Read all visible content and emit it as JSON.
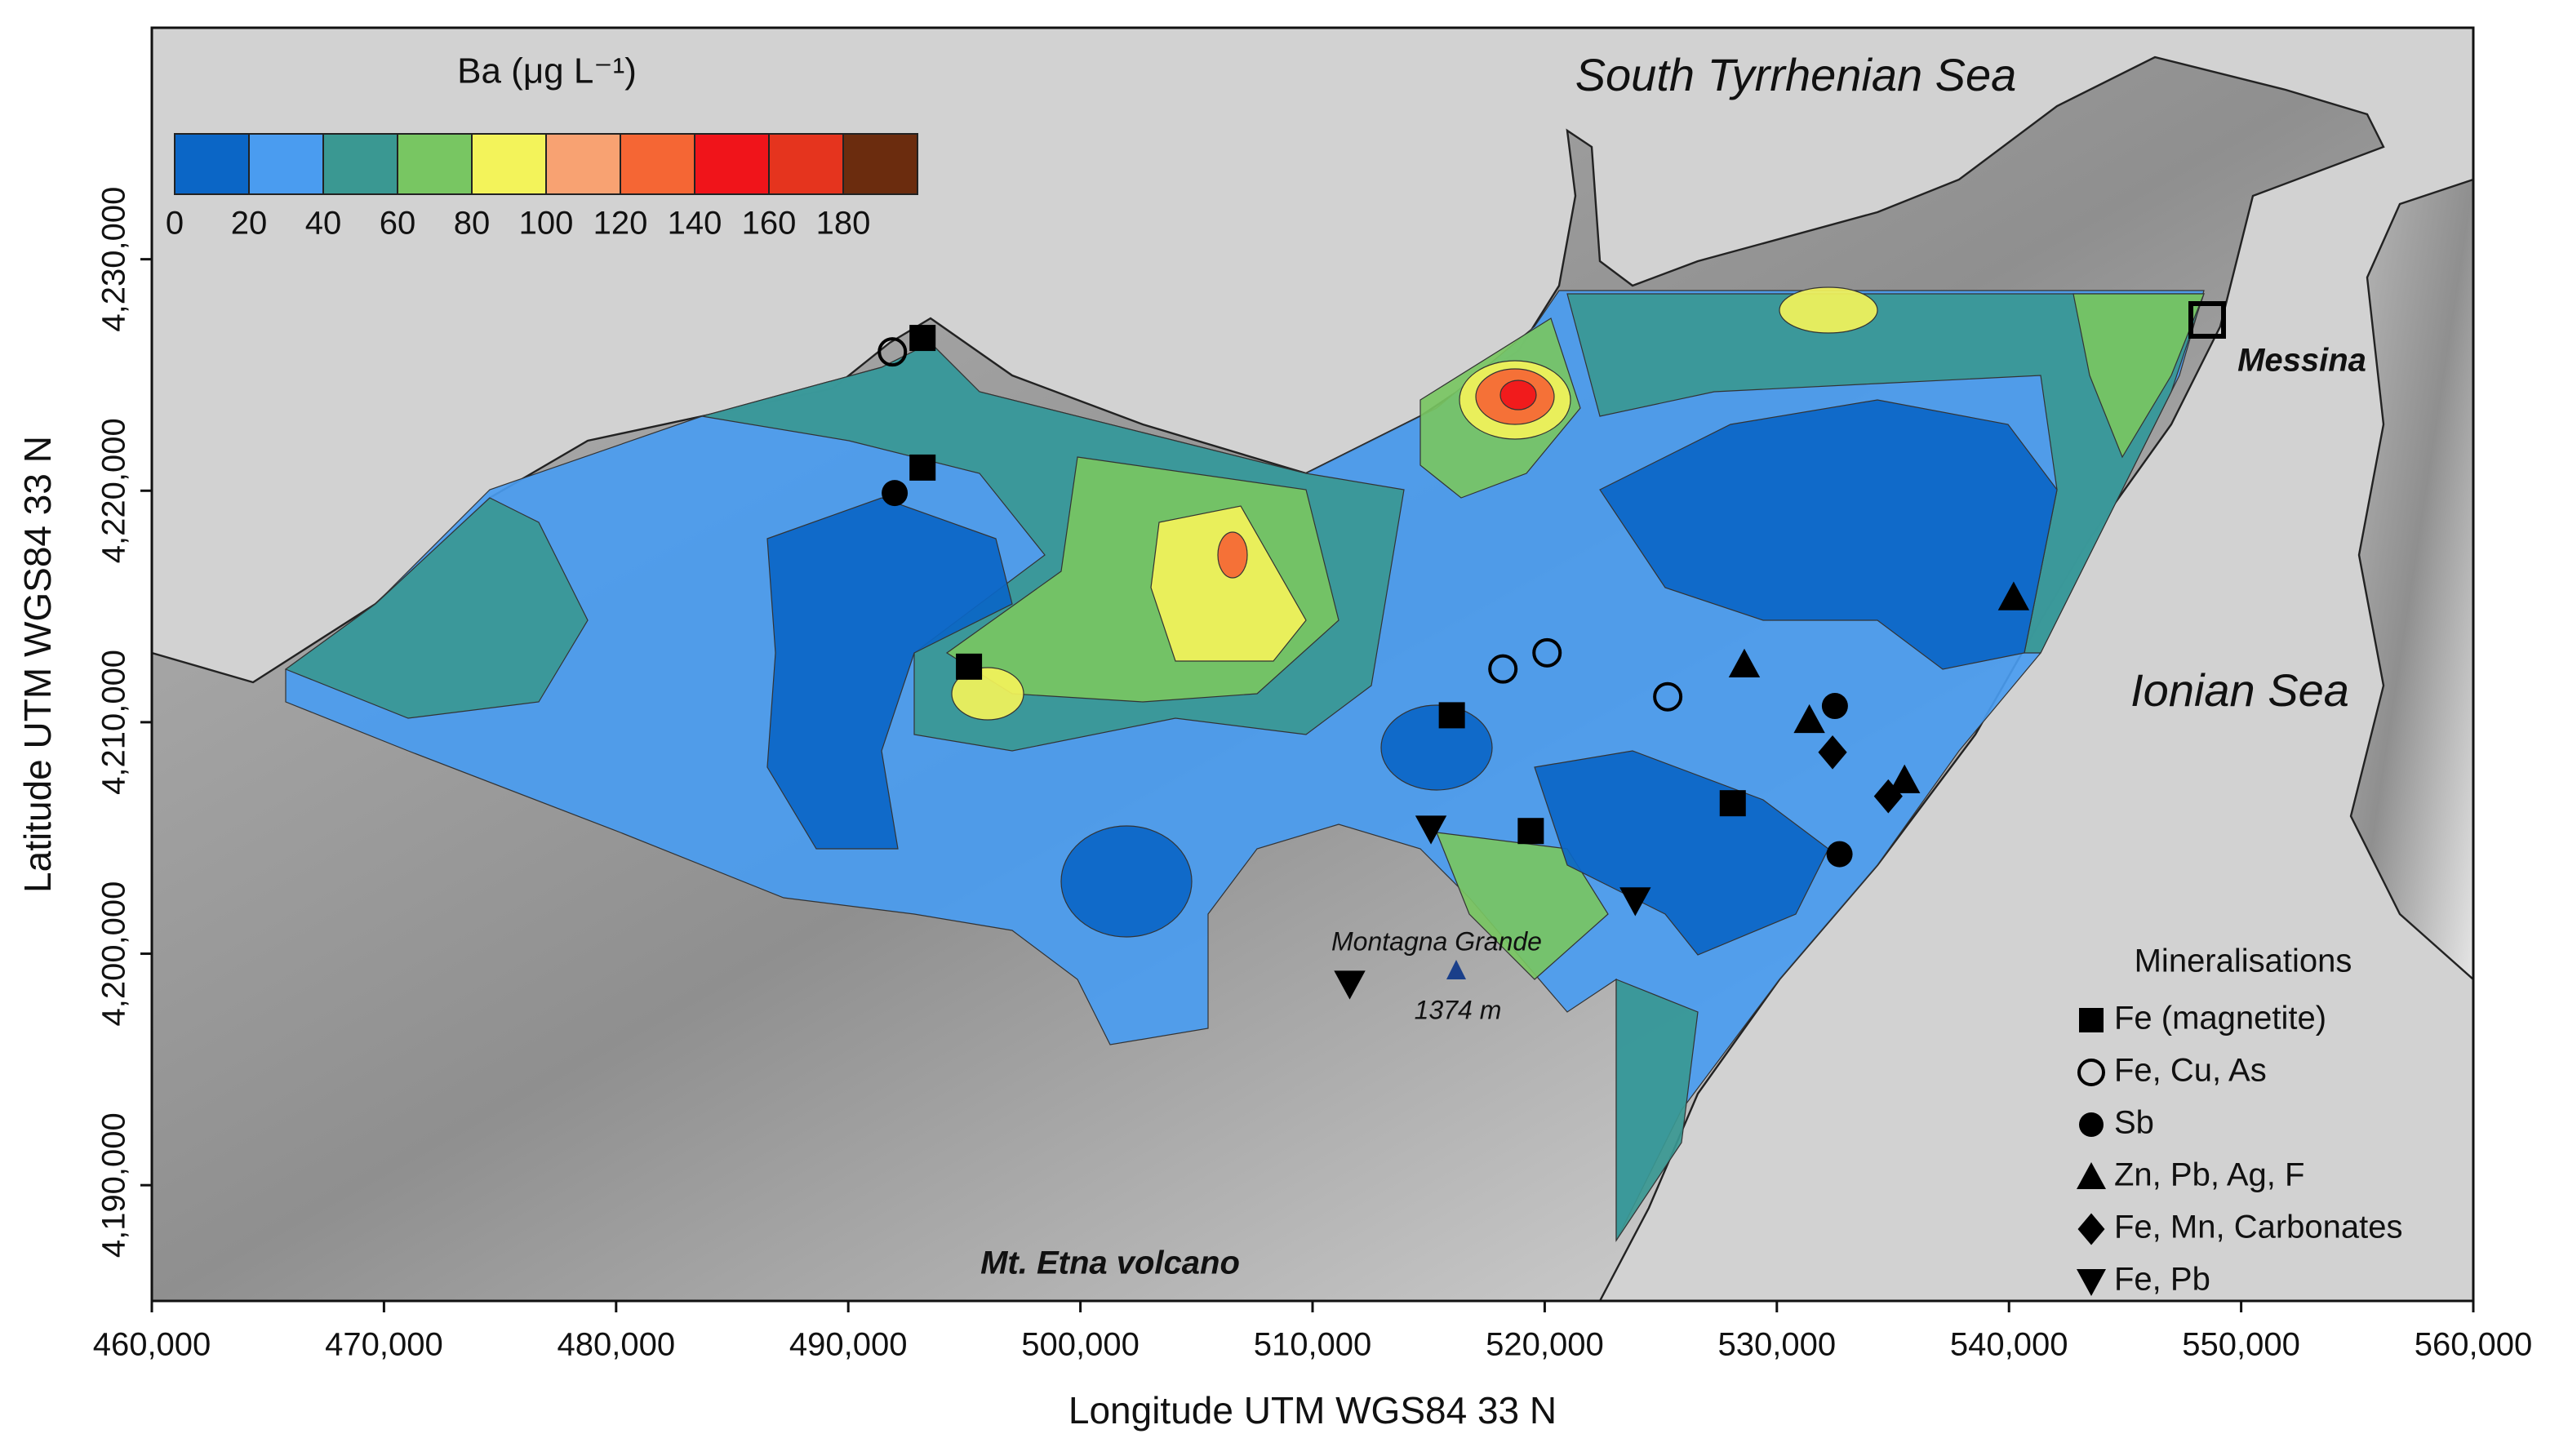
{
  "chart_data": {
    "type": "map",
    "x_label": "Longitude UTM WGS84 33 N",
    "y_label": "Latitude UTM WGS84 33 N",
    "xlim": [
      460000,
      560000
    ],
    "ylim": [
      4185000,
      4240000
    ],
    "xticks": [
      {
        "value": 460000,
        "label": "460,000"
      },
      {
        "value": 470000,
        "label": "470,000"
      },
      {
        "value": 480000,
        "label": "480,000"
      },
      {
        "value": 490000,
        "label": "490,000"
      },
      {
        "value": 500000,
        "label": "500,000"
      },
      {
        "value": 510000,
        "label": "510,000"
      },
      {
        "value": 520000,
        "label": "520,000"
      },
      {
        "value": 530000,
        "label": "530,000"
      },
      {
        "value": 540000,
        "label": "540,000"
      },
      {
        "value": 550000,
        "label": "550,000"
      },
      {
        "value": 560000,
        "label": "560,000"
      }
    ],
    "yticks": [
      {
        "value": 4190000,
        "label": "4,190,000"
      },
      {
        "value": 4200000,
        "label": "4,200,000"
      },
      {
        "value": 4210000,
        "label": "4,210,000"
      },
      {
        "value": 4220000,
        "label": "4,220,000"
      },
      {
        "value": 4230000,
        "label": "4,230,000"
      }
    ],
    "colorbar": {
      "title": "Ba (μg L⁻¹)",
      "ticks": [
        0,
        20,
        40,
        60,
        80,
        100,
        120,
        140,
        160,
        180
      ],
      "colors": [
        "#0b66c6",
        "#4a9cf0",
        "#3a9892",
        "#78c662",
        "#f3f35a",
        "#f8a272",
        "#f56634",
        "#f0141a",
        "#e5341e",
        "#6b2c0e"
      ]
    },
    "annotations": [
      "South Tyrrhenian Sea",
      "Ionian Sea",
      "Messina",
      "Montagna Grande",
      "1374 m",
      "Mt. Etna volcano"
    ],
    "legend_title": "Mineralisations",
    "series": [
      {
        "name": "Fe (magnetite)",
        "shape": "square",
        "color": "#000000",
        "x": [
          493200,
          493200,
          495200,
          516000,
          519400,
          528100
        ],
        "y": [
          4226600,
          4221000,
          4212400,
          4210300,
          4205300,
          4206500
        ]
      },
      {
        "name": "Fe, Cu, As",
        "shape": "open-circle",
        "color": "#000000",
        "x": [
          491900,
          518200,
          520100,
          525300
        ],
        "y": [
          4226000,
          4212300,
          4213000,
          4211100
        ]
      },
      {
        "name": "Sb",
        "shape": "circle",
        "color": "#000000",
        "x": [
          492000,
          532500,
          532700
        ],
        "y": [
          4219900,
          4210700,
          4204300
        ]
      },
      {
        "name": "Zn, Pb, Ag, F",
        "shape": "triangle-up",
        "color": "#000000",
        "x": [
          540200,
          528600,
          531400,
          535500
        ],
        "y": [
          4215400,
          4212500,
          4210100,
          4207500
        ]
      },
      {
        "name": "Fe, Mn, Carbonates",
        "shape": "diamond",
        "color": "#000000",
        "x": [
          532400,
          534800
        ],
        "y": [
          4208700,
          4206800
        ]
      },
      {
        "name": "Fe, Pb",
        "shape": "triangle-down",
        "color": "#000000",
        "x": [
          515100,
          523900,
          511600
        ],
        "y": [
          4205400,
          4202300,
          4198700
        ]
      }
    ]
  }
}
